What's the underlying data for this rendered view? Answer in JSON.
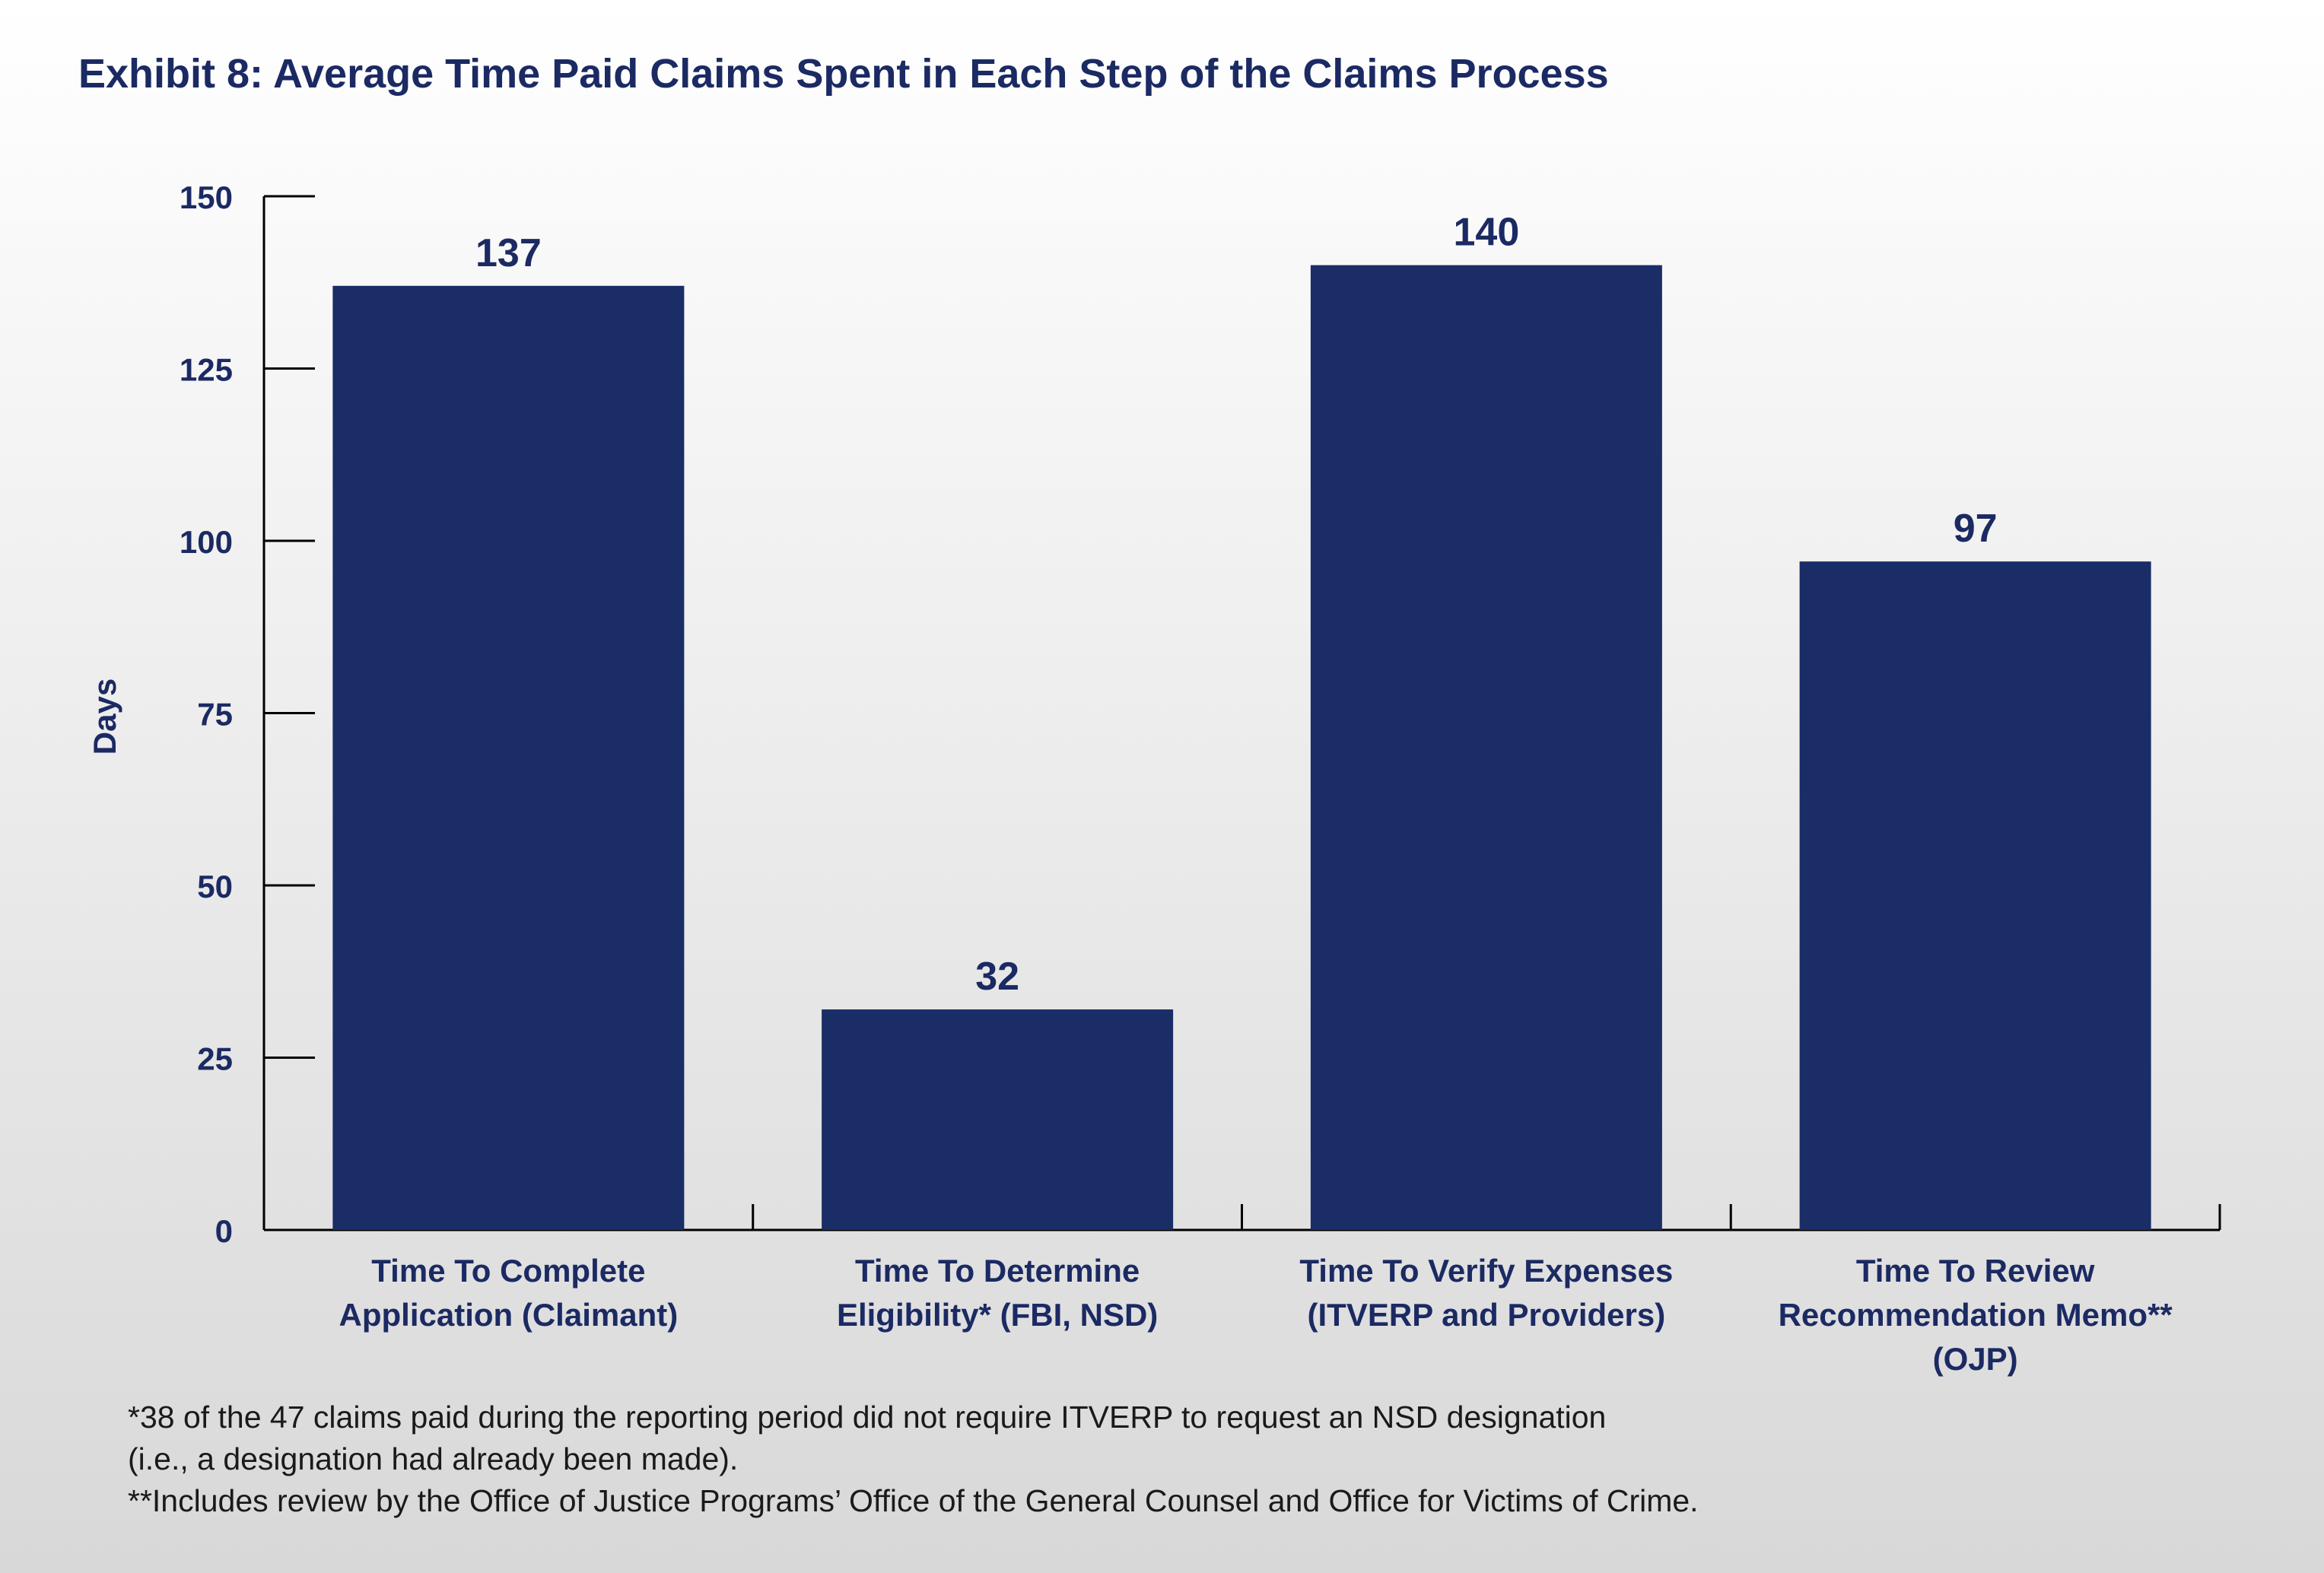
{
  "chart_data": {
    "type": "bar",
    "title": "Exhibit 8: Average Time Paid Claims Spent in Each Step of the Claims Process",
    "ylabel": "Days",
    "xlabel": "",
    "ylim": [
      0,
      150
    ],
    "yticks": [
      0,
      25,
      50,
      75,
      100,
      125,
      150
    ],
    "categories": [
      [
        "Time To Complete",
        "Application (Claimant)"
      ],
      [
        "Time To Determine",
        "Eligibility* (FBI, NSD)"
      ],
      [
        "Time To Verify Expenses",
        "(ITVERP and Providers)"
      ],
      [
        "Time To Review",
        "Recommendation Memo**",
        "(OJP)"
      ]
    ],
    "values": [
      137,
      32,
      140,
      97
    ],
    "data_labels": [
      "137",
      "32",
      "140",
      "97"
    ],
    "bar_color": "#1b2d66",
    "text_color": "#1b2a63",
    "grid": false,
    "legend": "none"
  },
  "footnotes": {
    "line1": "*38 of the 47 claims paid during the reporting period did not require ITVERP to request an NSD designation",
    "line2": "(i.e., a designation had already been made).",
    "line3": "**Includes review by the Office of Justice Programs’ Office of the General Counsel and Office for Victims of Crime."
  }
}
